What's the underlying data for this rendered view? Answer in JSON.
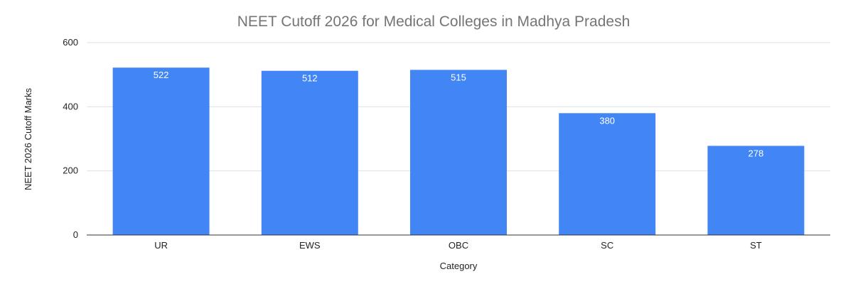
{
  "chart_data": {
    "type": "bar",
    "title": "NEET Cutoff 2026 for Medical Colleges in Madhya Pradesh",
    "xlabel": "Category",
    "ylabel": "NEET 2026 Cutoff Marks",
    "categories": [
      "UR",
      "EWS",
      "OBC",
      "SC",
      "ST"
    ],
    "values": [
      522,
      512,
      515,
      380,
      278
    ],
    "ylim": [
      0,
      600
    ],
    "yticks": [
      0,
      200,
      400,
      600
    ],
    "grid": true,
    "legend": "none",
    "bar_color": "#4285f4",
    "data_labels": true
  }
}
